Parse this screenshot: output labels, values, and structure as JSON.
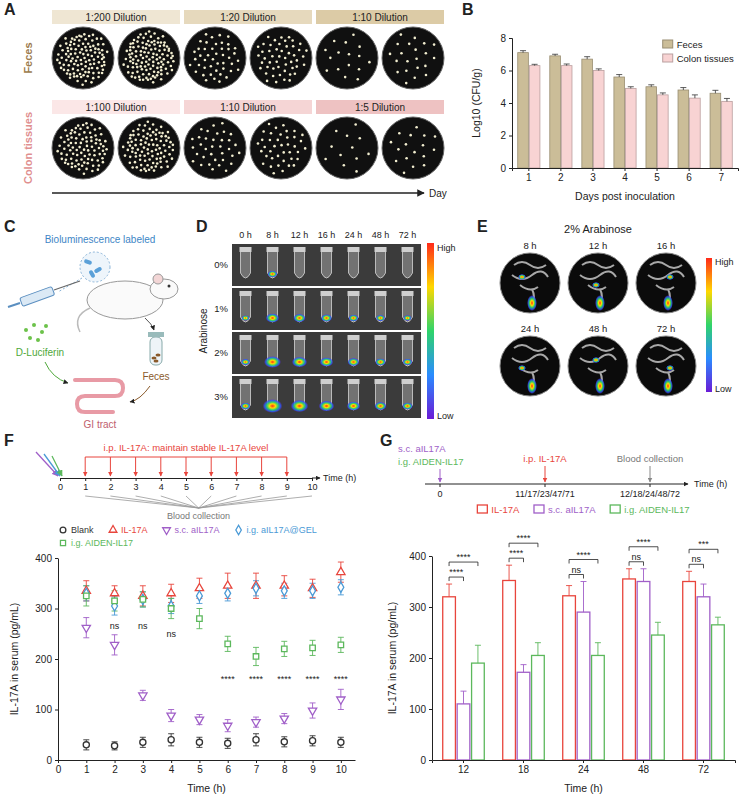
{
  "figure": {
    "A": {
      "letter": "A",
      "rows": [
        {
          "label": "Feces",
          "dilutions": [
            "1:200 Dilution",
            "1:20 Dilution",
            "1:10 Dilution"
          ]
        },
        {
          "label": "Colon tissues",
          "dilutions": [
            "1:100 Dilution",
            "1:10 Dilution",
            "1:5 Dilution"
          ]
        }
      ],
      "arrow_label": "Day"
    },
    "B": {
      "letter": "B"
    },
    "C": {
      "letter": "C",
      "cells": "Bioluminescence labeled",
      "substrate": "D-Luciferin",
      "organ": "GI tract",
      "sample": "Feces"
    },
    "D": {
      "letter": "D",
      "row_title": "Arabinose",
      "rows": [
        "0%",
        "1%",
        "2%",
        "3%"
      ],
      "columns": [
        "0 h",
        "8 h",
        "12 h",
        "16 h",
        "24 h",
        "48 h",
        "72 h"
      ],
      "scale_high": "High",
      "scale_low": "Low"
    },
    "E": {
      "letter": "E",
      "title": "2% Arabinose",
      "images": [
        "8 h",
        "12 h",
        "16 h",
        "24 h",
        "48 h",
        "72 h"
      ],
      "scale_high": "High",
      "scale_low": "Low"
    },
    "F": {
      "letter": "F",
      "injection": "i.p. IL-17A: maintain stable IL-17A level",
      "collection": "Blood collection",
      "ticks": [
        0,
        1,
        2,
        3,
        4,
        5,
        6,
        7,
        8,
        9,
        10
      ],
      "axis_label": "Time (h)"
    },
    "G": {
      "letter": "G",
      "treatments": [
        "s.c. aIL17A",
        "i.g. AIDEN-IL17"
      ],
      "injection": "i.p. IL-17A",
      "collection": "Blood collection",
      "ticks": [
        "0",
        "11/17/23/47/71",
        "12/18/24/48/72"
      ],
      "axis_label": "Time (h)"
    }
  },
  "chart_data": [
    {
      "type": "bar",
      "x_label": "Days post inoculation",
      "y_label": "Log10 (CFU/g)",
      "categories": [
        "1",
        "2",
        "3",
        "4",
        "5",
        "6",
        "7"
      ],
      "ylim": [
        0,
        8
      ],
      "yticks": [
        0,
        2,
        4,
        6,
        8
      ],
      "legend": "top-right",
      "series": [
        {
          "name": "Feces",
          "color": "#cbbd98",
          "values": [
            7.1,
            6.9,
            6.7,
            5.6,
            5.0,
            4.8,
            4.6
          ],
          "errors": [
            0.12,
            0.1,
            0.15,
            0.15,
            0.12,
            0.15,
            0.18
          ]
        },
        {
          "name": "Colon tissues",
          "color": "#f8d3d3",
          "values": [
            6.3,
            6.3,
            6.0,
            4.9,
            4.5,
            4.3,
            4.1
          ],
          "errors": [
            0.08,
            0.1,
            0.1,
            0.1,
            0.12,
            0.2,
            0.18
          ]
        }
      ]
    },
    {
      "type": "scatter",
      "x_label": "Time (h)",
      "y_label": "IL-17A in serum (pg/mL)",
      "x": [
        1,
        2,
        3,
        4,
        5,
        6,
        7,
        8,
        9,
        10
      ],
      "xlim": [
        0,
        10.5
      ],
      "xticks": [
        0,
        1,
        2,
        3,
        4,
        5,
        6,
        7,
        8,
        9,
        10
      ],
      "ylim": [
        0,
        400
      ],
      "yticks": [
        0,
        100,
        200,
        300,
        400
      ],
      "legend": "top",
      "series": [
        {
          "name": "Blank",
          "color": "#333333",
          "marker": "circle",
          "values": [
            30,
            28,
            35,
            40,
            35,
            33,
            40,
            36,
            38,
            35
          ],
          "errors": [
            10,
            8,
            10,
            12,
            10,
            10,
            12,
            10,
            10,
            10
          ]
        },
        {
          "name": "IL-17A",
          "color": "#e8453c",
          "marker": "triangle",
          "values": [
            335,
            330,
            325,
            330,
            340,
            345,
            345,
            345,
            340,
            372
          ],
          "errors": [
            20,
            15,
            20,
            18,
            20,
            25,
            25,
            20,
            18,
            20
          ]
        },
        {
          "name": "s.c. aIL17A",
          "color": "#a05fc8",
          "marker": "triangle-down",
          "values": [
            262,
            228,
            128,
            88,
            80,
            68,
            75,
            82,
            98,
            120
          ],
          "errors": [
            20,
            20,
            10,
            12,
            10,
            12,
            10,
            10,
            15,
            20
          ]
        },
        {
          "name": "i.g. aIL17A@GEL",
          "color": "#4a9ad6",
          "marker": "diamond",
          "values": [
            330,
            305,
            318,
            305,
            325,
            330,
            340,
            335,
            335,
            342
          ],
          "errors": [
            15,
            18,
            15,
            15,
            15,
            15,
            15,
            15,
            15,
            15
          ]
        },
        {
          "name": "i.g. AIDEN-IL17",
          "color": "#5cb85c",
          "marker": "square",
          "values": [
            325,
            315,
            318,
            300,
            280,
            230,
            205,
            220,
            222,
            228
          ],
          "errors": [
            20,
            20,
            15,
            20,
            20,
            15,
            18,
            15,
            15,
            15
          ]
        }
      ],
      "annotations": [
        {
          "text": "ns",
          "x": 2,
          "y": 265
        },
        {
          "text": "ns",
          "x": 3,
          "y": 265
        },
        {
          "text": "ns",
          "x": 4,
          "y": 250
        },
        {
          "text": "****",
          "x": 6,
          "y": 160
        },
        {
          "text": "****",
          "x": 7,
          "y": 160
        },
        {
          "text": "****",
          "x": 8,
          "y": 160
        },
        {
          "text": "****",
          "x": 9,
          "y": 160
        },
        {
          "text": "****",
          "x": 10,
          "y": 160
        }
      ]
    },
    {
      "type": "bar",
      "x_label": "Time (h)",
      "y_label": "IL-17A in serum (pg/mL)",
      "categories": [
        "12",
        "18",
        "24",
        "48",
        "72"
      ],
      "ylim": [
        0,
        400
      ],
      "yticks": [
        0,
        100,
        200,
        300,
        400
      ],
      "legend": "top",
      "series": [
        {
          "name": "IL-17A",
          "color": "#e8453c",
          "values": [
            320,
            352,
            322,
            355,
            350
          ],
          "errors": [
            25,
            30,
            20,
            20,
            20
          ]
        },
        {
          "name": "s.c. aIL17A",
          "color": "#a05fc8",
          "values": [
            110,
            172,
            290,
            350,
            320
          ],
          "errors": [
            25,
            15,
            60,
            25,
            25
          ]
        },
        {
          "name": "i.g. AIDEN-IL17",
          "color": "#5cb85c",
          "values": [
            190,
            205,
            205,
            245,
            265
          ],
          "errors": [
            35,
            25,
            25,
            25,
            15
          ]
        }
      ],
      "annotations": [
        {
          "text": "****",
          "category": 0,
          "series": [
            0,
            1
          ]
        },
        {
          "text": "****",
          "category": 0,
          "series": [
            0,
            2
          ]
        },
        {
          "text": "****",
          "category": 1,
          "series": [
            0,
            1
          ]
        },
        {
          "text": "****",
          "category": 1,
          "series": [
            0,
            2
          ]
        },
        {
          "text": "ns",
          "category": 2,
          "series": [
            0,
            1
          ]
        },
        {
          "text": "****",
          "category": 2,
          "series": [
            0,
            2
          ]
        },
        {
          "text": "ns",
          "category": 3,
          "series": [
            0,
            1
          ]
        },
        {
          "text": "****",
          "category": 3,
          "series": [
            0,
            2
          ]
        },
        {
          "text": "ns",
          "category": 4,
          "series": [
            0,
            1
          ]
        },
        {
          "text": "***",
          "category": 4,
          "series": [
            0,
            2
          ]
        }
      ]
    }
  ]
}
